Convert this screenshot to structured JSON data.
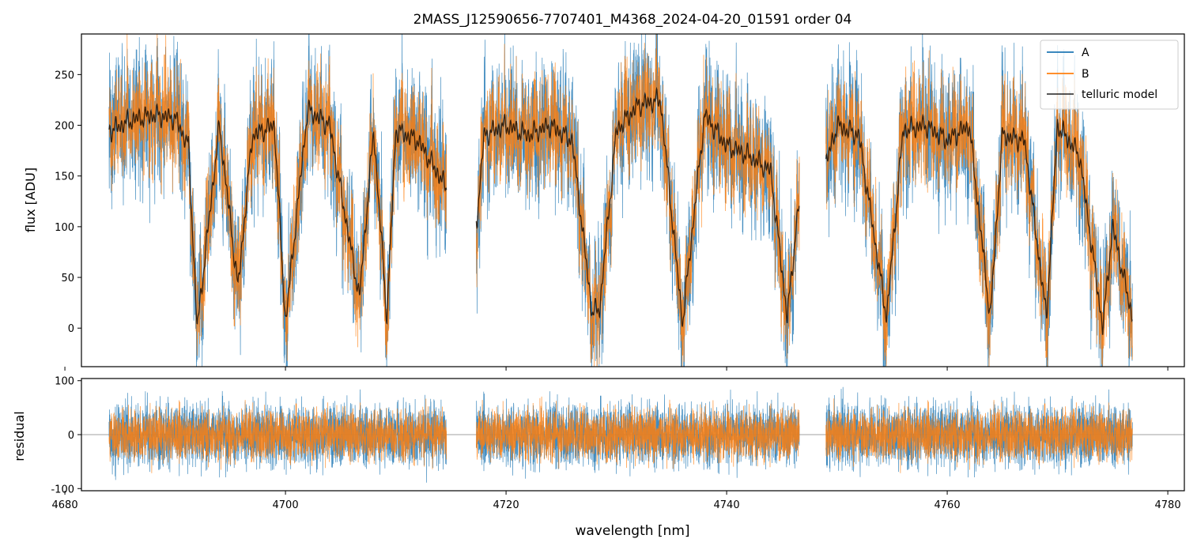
{
  "figure_title": "2MASS_J12590656-7707401_M4368_2024-04-20_01591  order 04",
  "colors": {
    "series_a": "#1f77b4",
    "series_b": "#ff7f0e",
    "telluric": "#000000",
    "residual_zero_line": "#808080"
  },
  "chart_data": [
    {
      "type": "line",
      "panel": "top",
      "xlabel": "",
      "ylabel": "flux [ADU]",
      "xlim": [
        4681.5,
        4781.5
      ],
      "ylim": [
        -38,
        290
      ],
      "xticks": [
        4680,
        4700,
        4720,
        4740,
        4760,
        4780
      ],
      "yticks": [
        0,
        50,
        100,
        150,
        200,
        250
      ],
      "grid": false,
      "legend_position": "top-right",
      "segments_x_ranges": [
        [
          4684.0,
          4714.6
        ],
        [
          4717.3,
          4746.6
        ],
        [
          4749.0,
          4776.8
        ]
      ],
      "series": [
        {
          "name": "A",
          "color": "#1f77b4"
        },
        {
          "name": "B",
          "color": "#ff7f0e"
        },
        {
          "name": "telluric model",
          "color": "#000000"
        }
      ],
      "telluric_model": {
        "x": [
          4684.2,
          4686,
          4688,
          4690,
          4691.2,
          4692,
          4694,
          4695.7,
          4697,
          4699,
          4700,
          4702,
          4704,
          4706.7,
          4708,
          4709.2,
          4710,
          4712,
          4714.5,
          4717.4,
          4718,
          4720,
          4722,
          4724,
          4726,
          4727.8,
          4728.5,
          4730,
          4732,
          4734,
          4736,
          4738,
          4740,
          4742,
          4744,
          4745.5,
          4746.5,
          4749.1,
          4750,
          4752,
          4754.5,
          4756,
          4758,
          4760,
          4762,
          4763.9,
          4765,
          4767,
          4769,
          4770,
          4772,
          4774.1,
          4775,
          4776.7
        ],
        "values": [
          195,
          205,
          210,
          207,
          180,
          0,
          200,
          40,
          190,
          200,
          5,
          215,
          200,
          30,
          195,
          10,
          195,
          185,
          140,
          110,
          190,
          200,
          190,
          200,
          185,
          15,
          20,
          195,
          220,
          225,
          5,
          210,
          180,
          170,
          155,
          10,
          120,
          165,
          200,
          190,
          10,
          195,
          200,
          185,
          200,
          10,
          190,
          185,
          10,
          200,
          170,
          0,
          100,
          15
        ]
      }
    },
    {
      "type": "line",
      "panel": "bottom",
      "xlabel": "wavelength [nm]",
      "ylabel": "residual",
      "xlim": [
        4681.5,
        4781.5
      ],
      "ylim": [
        -104,
        104
      ],
      "xticks": [
        4680,
        4700,
        4720,
        4740,
        4760,
        4780
      ],
      "yticks": [
        -100,
        0,
        100
      ],
      "grid": false,
      "series": [
        {
          "name": "A",
          "color": "#1f77b4"
        },
        {
          "name": "B",
          "color": "#ff7f0e"
        }
      ],
      "zero_line": 0
    }
  ]
}
